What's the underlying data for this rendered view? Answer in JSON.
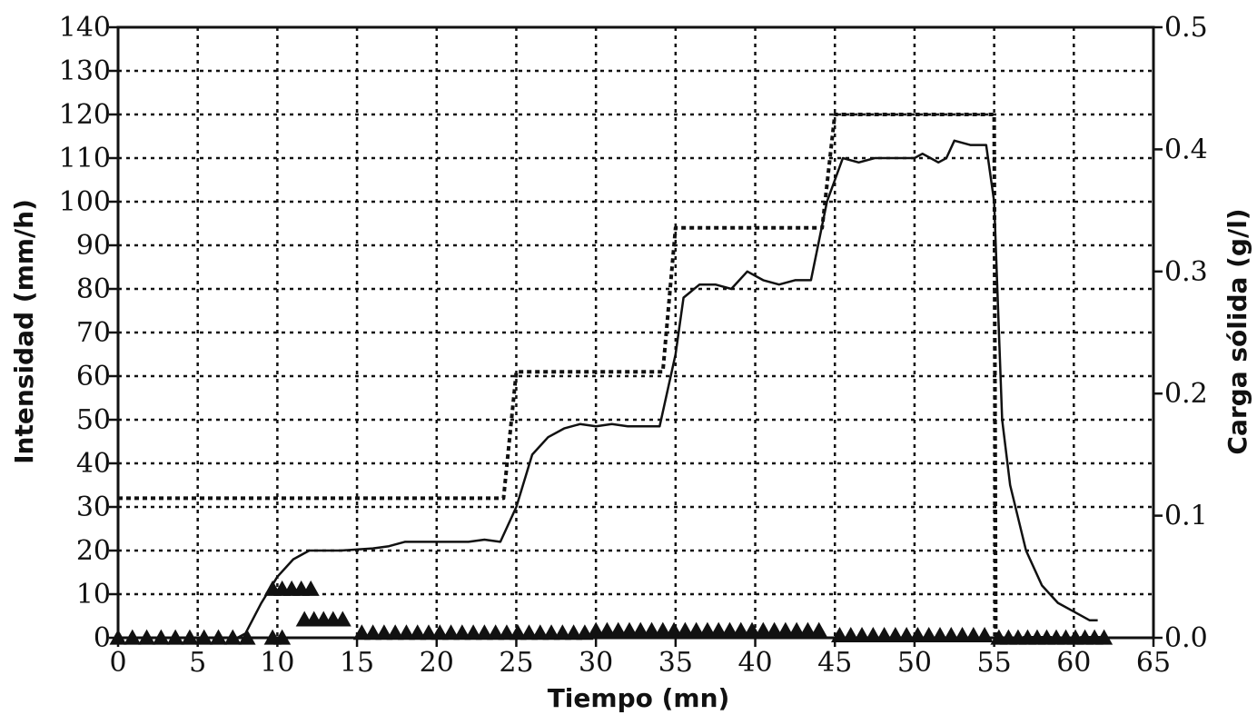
{
  "chart_data": {
    "type": "line",
    "title": "",
    "xlabel": "Tiempo (mn)",
    "ylabel_left": "Intensidad (mm/h)",
    "ylabel_right": "Carga sólida (g/l)",
    "xlim": [
      0,
      65
    ],
    "ylim_left": [
      0,
      140
    ],
    "ylim_right": [
      0,
      0.5
    ],
    "x_ticks": [
      "0",
      "5",
      "10",
      "15",
      "20",
      "25",
      "30",
      "35",
      "40",
      "45",
      "50",
      "55",
      "60",
      "65"
    ],
    "y_left_ticks": [
      "0",
      "10",
      "20",
      "30",
      "40",
      "50",
      "60",
      "70",
      "80",
      "90",
      "100",
      "110",
      "120",
      "130",
      "140"
    ],
    "y_right_ticks": [
      "0.0",
      "0.1",
      "0.2",
      "0.3",
      "0.4",
      "0.5"
    ],
    "grid": true,
    "legend": "none",
    "series": [
      {
        "axis": "left",
        "style": "dashed",
        "points": [
          [
            0,
            32
          ],
          [
            24,
            32
          ],
          [
            24.2,
            32
          ],
          [
            25,
            61
          ],
          [
            34,
            61
          ],
          [
            34.2,
            61
          ],
          [
            35,
            94
          ],
          [
            44,
            94
          ],
          [
            44.2,
            94
          ],
          [
            45,
            120
          ],
          [
            55,
            120
          ],
          [
            55.1,
            0
          ],
          [
            62,
            0
          ]
        ]
      },
      {
        "axis": "left",
        "style": "solid",
        "points": [
          [
            0,
            0
          ],
          [
            7.5,
            0
          ],
          [
            8,
            1
          ],
          [
            9,
            8
          ],
          [
            10,
            14
          ],
          [
            11,
            18
          ],
          [
            12,
            20
          ],
          [
            14,
            20
          ],
          [
            16,
            20.5
          ],
          [
            17,
            21
          ],
          [
            18,
            22
          ],
          [
            22,
            22
          ],
          [
            23,
            22.5
          ],
          [
            24,
            22
          ],
          [
            25,
            30
          ],
          [
            26,
            42
          ],
          [
            27,
            46
          ],
          [
            28,
            48
          ],
          [
            29,
            49
          ],
          [
            30,
            48.5
          ],
          [
            31,
            49
          ],
          [
            32,
            48.5
          ],
          [
            34,
            48.5
          ],
          [
            35,
            65
          ],
          [
            35.5,
            78
          ],
          [
            36.5,
            81
          ],
          [
            37.5,
            81
          ],
          [
            38.5,
            80
          ],
          [
            39.5,
            84
          ],
          [
            40.5,
            82
          ],
          [
            41.5,
            81
          ],
          [
            42.5,
            82
          ],
          [
            43.5,
            82
          ],
          [
            44.5,
            100
          ],
          [
            45.5,
            110
          ],
          [
            46.5,
            109
          ],
          [
            47.5,
            110
          ],
          [
            50,
            110
          ],
          [
            50.5,
            111
          ],
          [
            51,
            110
          ],
          [
            51.5,
            109
          ],
          [
            52,
            110
          ],
          [
            52.5,
            114
          ],
          [
            53.5,
            113
          ],
          [
            54.5,
            113
          ],
          [
            55,
            100
          ],
          [
            55.5,
            50
          ],
          [
            56,
            35
          ],
          [
            57,
            20
          ],
          [
            58,
            12
          ],
          [
            59,
            8
          ],
          [
            60,
            6
          ],
          [
            61,
            4
          ],
          [
            61.5,
            4
          ]
        ]
      },
      {
        "axis": "right",
        "style": "triangle-markers",
        "points": [
          [
            0,
            0
          ],
          [
            0.9,
            0
          ],
          [
            1.8,
            0
          ],
          [
            2.7,
            0
          ],
          [
            3.6,
            0
          ],
          [
            4.5,
            0
          ],
          [
            5.4,
            0
          ],
          [
            6.3,
            0
          ],
          [
            7.2,
            0
          ],
          [
            8.1,
            0
          ],
          [
            9.7,
            0
          ],
          [
            10.3,
            0
          ],
          [
            9.7,
            0.04
          ],
          [
            10.3,
            0.04
          ],
          [
            10.9,
            0.04
          ],
          [
            11.5,
            0.04
          ],
          [
            12.1,
            0.04
          ],
          [
            11.7,
            0.015
          ],
          [
            12.3,
            0.015
          ],
          [
            12.9,
            0.015
          ],
          [
            13.5,
            0.015
          ],
          [
            14.1,
            0.015
          ],
          [
            15.3,
            0.004
          ],
          [
            16,
            0.004
          ],
          [
            16.7,
            0.004
          ],
          [
            17.4,
            0.004
          ],
          [
            18.1,
            0.004
          ],
          [
            18.8,
            0.004
          ],
          [
            19.5,
            0.004
          ],
          [
            20.2,
            0.004
          ],
          [
            20.9,
            0.004
          ],
          [
            21.6,
            0.004
          ],
          [
            22.3,
            0.004
          ],
          [
            23,
            0.004
          ],
          [
            23.7,
            0.004
          ],
          [
            24.4,
            0.004
          ],
          [
            25.1,
            0.004
          ],
          [
            25.8,
            0.004
          ],
          [
            26.5,
            0.004
          ],
          [
            27.2,
            0.004
          ],
          [
            27.9,
            0.004
          ],
          [
            28.6,
            0.004
          ],
          [
            29.3,
            0.004
          ],
          [
            30,
            0.006
          ],
          [
            30.7,
            0.006
          ],
          [
            31.4,
            0.006
          ],
          [
            32.1,
            0.006
          ],
          [
            32.8,
            0.006
          ],
          [
            33.5,
            0.006
          ],
          [
            34.2,
            0.006
          ],
          [
            34.9,
            0.006
          ],
          [
            35.6,
            0.006
          ],
          [
            36.3,
            0.006
          ],
          [
            37,
            0.006
          ],
          [
            37.7,
            0.006
          ],
          [
            38.4,
            0.006
          ],
          [
            39.1,
            0.006
          ],
          [
            39.8,
            0.006
          ],
          [
            40.5,
            0.006
          ],
          [
            41.2,
            0.006
          ],
          [
            41.9,
            0.006
          ],
          [
            42.6,
            0.006
          ],
          [
            43.3,
            0.006
          ],
          [
            44,
            0.006
          ],
          [
            45.3,
            0.002
          ],
          [
            46,
            0.002
          ],
          [
            46.7,
            0.002
          ],
          [
            47.4,
            0.002
          ],
          [
            48.1,
            0.002
          ],
          [
            48.8,
            0.002
          ],
          [
            49.5,
            0.002
          ],
          [
            50.2,
            0.002
          ],
          [
            50.9,
            0.002
          ],
          [
            51.6,
            0.002
          ],
          [
            52.3,
            0.002
          ],
          [
            53,
            0.002
          ],
          [
            53.7,
            0.002
          ],
          [
            54.4,
            0.002
          ],
          [
            55.3,
            0
          ],
          [
            55.9,
            0
          ],
          [
            56.5,
            0
          ],
          [
            57.1,
            0
          ],
          [
            57.7,
            0
          ],
          [
            58.3,
            0
          ],
          [
            58.9,
            0
          ],
          [
            59.5,
            0
          ],
          [
            60.1,
            0
          ],
          [
            60.7,
            0
          ],
          [
            61.3,
            0
          ],
          [
            61.9,
            0
          ]
        ]
      }
    ]
  }
}
